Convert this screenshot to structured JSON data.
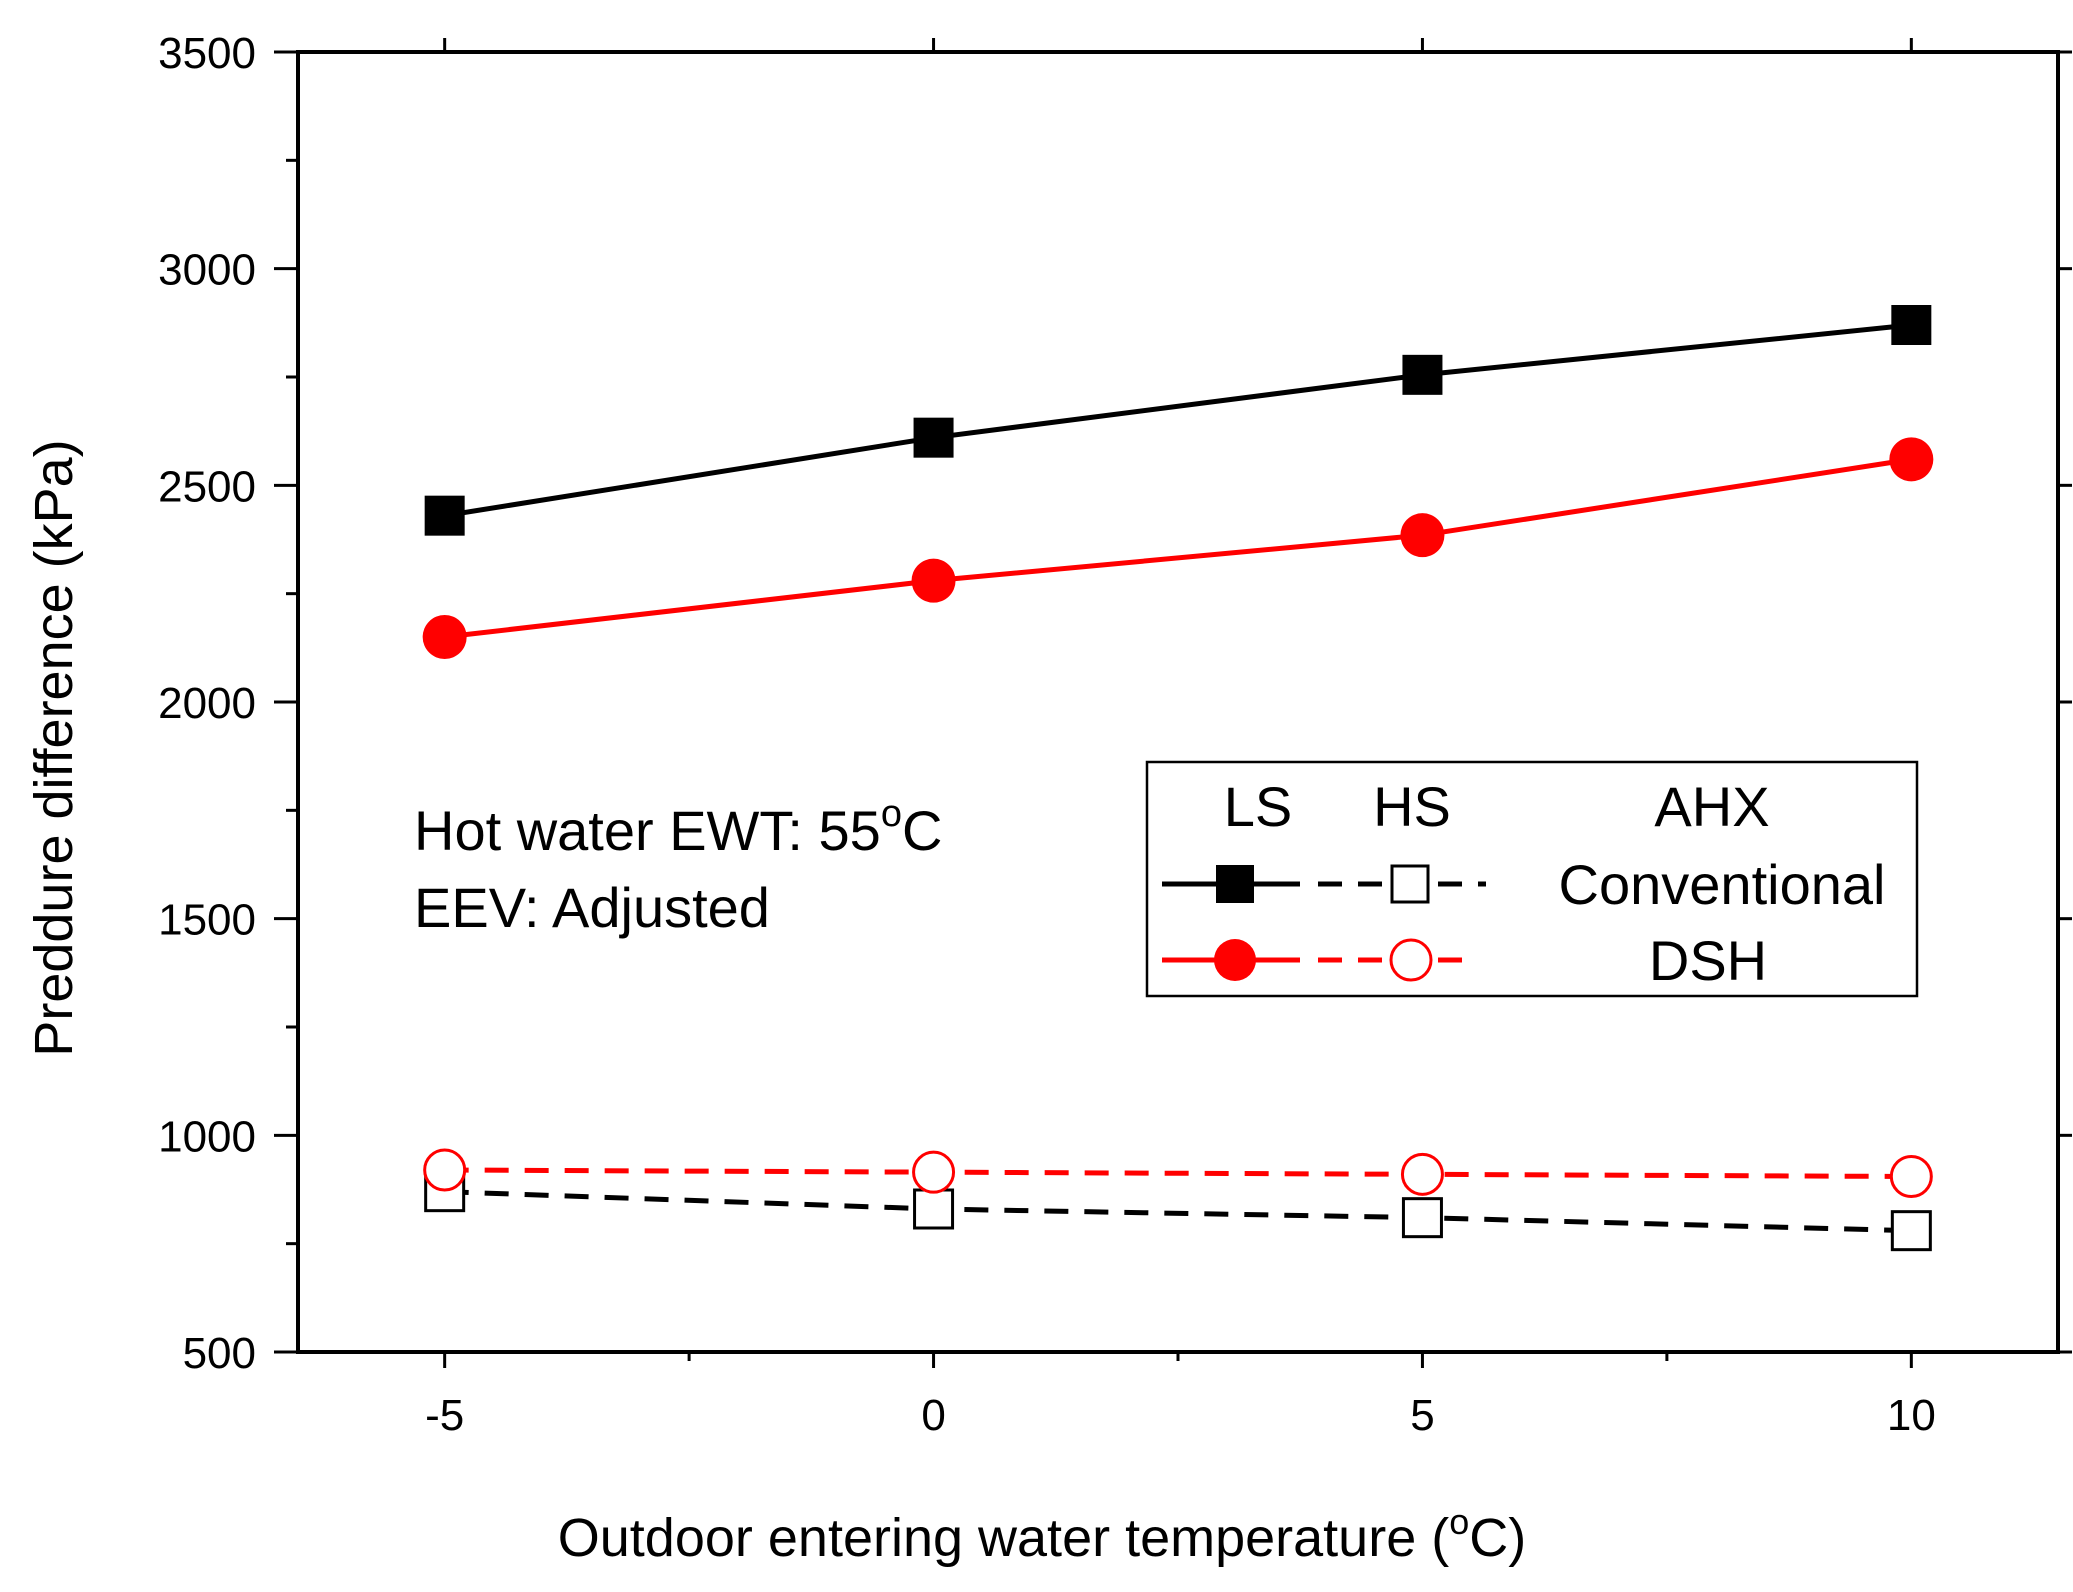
{
  "chart_data": {
    "type": "line",
    "title": "",
    "xlabel": "Outdoor entering water temperature (",
    "xlabel_unit_sup": "o",
    "xlabel_unit_end": "C)",
    "ylabel": "Preddure difference (kPa)",
    "xlim": [
      -6.5,
      11.5
    ],
    "ylim": [
      500,
      3500
    ],
    "xticks": [
      -5,
      0,
      5,
      10
    ],
    "xtick_labels": [
      "-5",
      "0",
      "5",
      "10"
    ],
    "xminor": [
      -2.5,
      2.5,
      7.5
    ],
    "yticks": [
      500,
      1000,
      1500,
      2000,
      2500,
      3000,
      3500
    ],
    "ytick_labels": [
      "500",
      "1000",
      "1500",
      "2000",
      "2500",
      "3000",
      "3500"
    ],
    "yminor": [
      750,
      1250,
      1750,
      2250,
      2750,
      3250
    ],
    "grid": false,
    "x": [
      -5,
      0,
      5,
      10
    ],
    "series": [
      {
        "name": "Conventional LS",
        "group": "Conventional",
        "side": "LS",
        "values": [
          2430,
          2610,
          2755,
          2870
        ],
        "color": "#000000",
        "marker": "square-filled",
        "line": "solid"
      },
      {
        "name": "Conventional HS",
        "group": "Conventional",
        "side": "HS",
        "values": [
          870,
          830,
          810,
          780
        ],
        "color": "#000000",
        "marker": "square-open",
        "line": "dashed"
      },
      {
        "name": "DSH LS",
        "group": "DSH",
        "side": "LS",
        "values": [
          2150,
          2280,
          2385,
          2560
        ],
        "color": "#ff0000",
        "marker": "circle-filled",
        "line": "solid"
      },
      {
        "name": "DSH HS",
        "group": "DSH",
        "side": "HS",
        "values": [
          920,
          915,
          910,
          905
        ],
        "color": "#ff0000",
        "marker": "circle-open",
        "line": "dashed"
      }
    ],
    "annotations": {
      "line1_prefix": "Hot water EWT: 55",
      "line1_sup": "o",
      "line1_suffix": "C",
      "line2": "EEV: Adjusted"
    },
    "legend": {
      "placement": "right-middle",
      "header_ls": "LS",
      "header_hs": "HS",
      "header_ahx": "AHX",
      "rows": [
        {
          "label": "Conventional",
          "color": "#000000",
          "ls_marker": "square-filled",
          "hs_marker": "square-open"
        },
        {
          "label": "DSH",
          "color": "#ff0000",
          "ls_marker": "circle-filled",
          "hs_marker": "circle-open"
        }
      ]
    }
  }
}
